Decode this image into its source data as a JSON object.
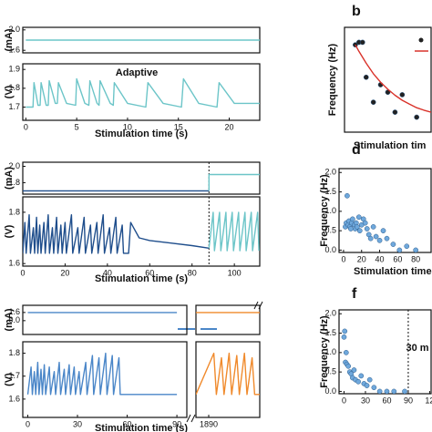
{
  "chart_data": [
    {
      "type": "line",
      "ylabel": "(mA)",
      "xlim": [
        -0.3,
        23
      ],
      "ylim": [
        1.55,
        2.05
      ],
      "xticks": [],
      "yticks": [
        {
          "value": 2,
          "label": "2.0"
        },
        1.6
      ],
      "series": [
        {
          "color": "#6cc5c8",
          "x": [
            0,
            23
          ],
          "values": [
            1.8,
            1.8
          ]
        }
      ]
    },
    {
      "type": "line",
      "ylabel": "(V)",
      "xlabel": "Stimulation time (s)",
      "annotation": "Adaptive",
      "xlim": [
        -0.3,
        23
      ],
      "ylim": [
        1.63,
        1.93
      ],
      "xticks": [
        0,
        5,
        10,
        15,
        20
      ],
      "yticks": [
        1.7,
        1.8,
        1.9
      ],
      "series": [
        {
          "color": "#6cc5c8",
          "x": [
            0,
            0.7,
            0.8,
            1.2,
            1.4,
            1.5,
            2.0,
            2.2,
            2.3,
            2.9,
            3.1,
            3.2,
            4.0,
            4.9,
            5.0,
            5.8,
            6.2,
            6.3,
            7.0,
            7.2,
            7.3,
            8.3,
            8.6,
            8.7,
            10,
            11.8,
            12,
            13.5,
            15.3,
            15.5,
            17,
            18.8,
            19,
            20.5,
            23
          ],
          "values": [
            1.7,
            1.7,
            1.83,
            1.71,
            1.71,
            1.83,
            1.71,
            1.71,
            1.84,
            1.72,
            1.72,
            1.83,
            1.72,
            1.71,
            1.85,
            1.72,
            1.71,
            1.84,
            1.72,
            1.71,
            1.84,
            1.72,
            1.71,
            1.83,
            1.72,
            1.7,
            1.83,
            1.72,
            1.7,
            1.85,
            1.72,
            1.7,
            1.83,
            1.72,
            1.72
          ]
        }
      ]
    },
    {
      "type": "line",
      "ylabel": "(mA)",
      "xlim": [
        0,
        112
      ],
      "ylim": [
        1.66,
        2.05
      ],
      "xticks": [],
      "yticks": [
        {
          "value": 2,
          "label": "2.0"
        },
        1.8
      ],
      "vlines": [
        88
      ],
      "series": [
        {
          "color": "#1f4e8c",
          "x": [
            0,
            88
          ],
          "values": [
            1.7,
            1.7
          ]
        },
        {
          "color": "#6cc5c8",
          "x": [
            88,
            88,
            112
          ],
          "values": [
            1.7,
            1.9,
            1.9
          ]
        }
      ]
    },
    {
      "type": "line",
      "ylabel": "(V)",
      "xlabel": "Stimulation time (s)",
      "xlim": [
        0,
        112
      ],
      "ylim": [
        1.59,
        1.86
      ],
      "xticks": [
        0,
        20,
        40,
        60,
        80,
        100
      ],
      "yticks": [
        1.6,
        1.8
      ],
      "vlines": [
        88
      ],
      "series": [
        {
          "color": "#1f4e8c",
          "x": [
            0,
            1,
            1.6,
            3,
            3.6,
            5,
            5.6,
            6.5,
            7.1,
            8,
            8.6,
            10,
            10.6,
            12,
            12.6,
            14,
            14.6,
            16,
            16.6,
            18,
            18.6,
            20,
            20.6,
            23,
            23.6,
            26,
            26.6,
            29,
            29.6,
            32,
            32.6,
            35,
            35.6,
            38,
            38.6,
            41,
            41.6,
            44,
            44.6,
            47,
            47.6,
            50,
            51,
            55,
            60,
            70,
            80,
            88
          ],
          "values": [
            1.64,
            1.76,
            1.64,
            1.79,
            1.64,
            1.74,
            1.64,
            1.78,
            1.64,
            1.75,
            1.64,
            1.76,
            1.64,
            1.79,
            1.64,
            1.74,
            1.64,
            1.78,
            1.64,
            1.75,
            1.64,
            1.76,
            1.64,
            1.79,
            1.64,
            1.74,
            1.64,
            1.78,
            1.64,
            1.75,
            1.64,
            1.76,
            1.64,
            1.79,
            1.64,
            1.74,
            1.64,
            1.78,
            1.64,
            1.75,
            1.64,
            1.64,
            1.76,
            1.7,
            1.69,
            1.68,
            1.67,
            1.66
          ]
        },
        {
          "color": "#6cc5c8",
          "x": [
            88,
            90,
            90.6,
            93,
            93.6,
            96,
            96.6,
            99,
            99.6,
            102,
            102.6,
            105,
            105.6,
            108,
            108.6,
            111,
            111.6
          ],
          "values": [
            1.66,
            1.8,
            1.65,
            1.8,
            1.65,
            1.8,
            1.65,
            1.8,
            1.65,
            1.8,
            1.65,
            1.8,
            1.65,
            1.8,
            1.65,
            1.8,
            1.65
          ]
        }
      ]
    },
    {
      "type": "line",
      "ylabel": "(mA)",
      "xlim": [
        -3,
        96
      ],
      "ylim": [
        -2.7,
        3.0
      ],
      "xticks": [],
      "yticks": [
        1.6,
        {
          "value": 0,
          "label": "0.0"
        }
      ],
      "series": [
        {
          "color": "#4a86c8",
          "x": [
            0,
            90
          ],
          "values": [
            1.6,
            1.6
          ]
        }
      ]
    },
    {
      "type": "line",
      "xlim": [
        1885,
        1910
      ],
      "ylim": [
        -2.7,
        3.0
      ],
      "xticks": [],
      "yticks": [],
      "series": [
        {
          "color": "#f08a2c",
          "x": [
            1885,
            1910
          ],
          "values": [
            1.6,
            1.6
          ]
        }
      ]
    },
    {
      "type": "line",
      "ylabel": "(V)",
      "xlabel": "Stimulation time (s)",
      "xlim": [
        -3,
        96
      ],
      "ylim": [
        1.52,
        1.85
      ],
      "xticks": [
        0,
        30,
        60,
        90
      ],
      "yticks": [
        1.6,
        1.7,
        1.8
      ],
      "series": [
        {
          "color": "#4a86c8",
          "x": [
            0,
            2,
            2.8,
            4,
            4.8,
            6,
            6.8,
            8,
            8.8,
            10,
            10.8,
            13,
            13.8,
            16,
            16.8,
            19,
            19.8,
            22,
            22.8,
            25,
            25.8,
            28,
            28.8,
            31,
            31.8,
            35,
            35.8,
            39,
            39.8,
            43,
            43.8,
            47,
            47.8,
            51,
            51.8,
            55,
            55.8,
            58,
            60,
            90
          ],
          "values": [
            1.62,
            1.74,
            1.62,
            1.72,
            1.62,
            1.76,
            1.62,
            1.73,
            1.62,
            1.75,
            1.62,
            1.74,
            1.62,
            1.72,
            1.62,
            1.76,
            1.62,
            1.73,
            1.62,
            1.75,
            1.62,
            1.74,
            1.62,
            1.72,
            1.62,
            1.76,
            1.62,
            1.79,
            1.62,
            1.78,
            1.62,
            1.8,
            1.62,
            1.79,
            1.62,
            1.78,
            1.62,
            1.62,
            1.62,
            1.62
          ]
        }
      ]
    },
    {
      "type": "line",
      "xlim": [
        1885,
        1910
      ],
      "ylim": [
        1.52,
        1.85
      ],
      "xticks": [
        1890
      ],
      "yticks": [],
      "series": [
        {
          "color": "#f08a2c",
          "x": [
            1885,
            1892,
            1893,
            1895,
            1896,
            1898,
            1899,
            1901,
            1902,
            1904,
            1905,
            1907,
            1908,
            1910
          ],
          "values": [
            1.62,
            1.8,
            1.62,
            1.78,
            1.62,
            1.8,
            1.62,
            1.79,
            1.62,
            1.8,
            1.62,
            1.78,
            1.62,
            1.62
          ]
        }
      ]
    },
    {
      "type": "scatter",
      "label": "b",
      "ylabel": "Frequency (Hz)",
      "xlabel": "Stimulation tim",
      "xlim": [
        0,
        12
      ],
      "ylim": [
        0,
        2.1
      ],
      "xticks": [],
      "yticks": [],
      "series": [
        {
          "color": "#222222",
          "x": [
            1.5,
            2,
            2.5,
            3,
            4,
            5,
            6,
            7,
            8,
            10
          ],
          "values": [
            1.75,
            1.8,
            1.8,
            1.1,
            0.6,
            0.95,
            0.8,
            0.4,
            0.75,
            0.3
          ]
        },
        {
          "type": "line",
          "color": "#d9322a",
          "x": [
            1.5,
            2,
            3,
            4,
            5,
            6,
            7,
            8,
            9,
            10,
            11,
            12
          ],
          "values": [
            1.75,
            1.62,
            1.38,
            1.17,
            1.0,
            0.86,
            0.74,
            0.64,
            0.56,
            0.49,
            0.44,
            0.4
          ]
        }
      ]
    },
    {
      "type": "scatter",
      "label": "d",
      "ylabel": "Frequency (Hz)",
      "xlabel": "Stimulation time",
      "xlim": [
        -5,
        97
      ],
      "ylim": [
        -0.06,
        2.1
      ],
      "xticks": [
        0,
        20,
        40,
        60,
        80
      ],
      "yticks": [
        {
          "value": 0,
          "label": "0.0"
        },
        0.5,
        {
          "value": 1,
          "label": "1.0"
        },
        1.5,
        {
          "value": 2,
          "label": "2.0"
        }
      ],
      "series": [
        {
          "color": "#6fa8dc",
          "x": [
            2,
            3,
            4,
            5,
            6,
            7,
            8,
            9,
            10,
            12,
            13,
            14,
            15,
            17,
            18,
            20,
            22,
            24,
            26,
            28,
            30,
            33,
            36,
            40,
            44,
            48,
            55,
            62,
            70,
            80
          ],
          "values": [
            0.6,
            0.7,
            1.4,
            0.65,
            0.75,
            0.6,
            0.55,
            0.7,
            0.8,
            0.65,
            0.55,
            0.7,
            0.6,
            0.85,
            0.5,
            0.65,
            0.8,
            0.7,
            0.55,
            0.4,
            0.3,
            0.6,
            0.35,
            0.25,
            0.5,
            0.3,
            0.15,
            0.0,
            0.1,
            0.0
          ]
        }
      ]
    },
    {
      "type": "scatter",
      "label": "f",
      "ylabel": "Frequency (Hz)",
      "annotation": "30 m",
      "xlim": [
        -7,
        122
      ],
      "ylim": [
        -0.06,
        2.1
      ],
      "vlines": [
        90
      ],
      "xticks": [
        0,
        30,
        60,
        90,
        {
          "value": 120,
          "label": "12"
        }
      ],
      "yticks": [
        {
          "value": 0,
          "label": "0.0"
        },
        0.5,
        {
          "value": 1,
          "label": "1.0"
        },
        1.5,
        {
          "value": 2,
          "label": "2.0"
        }
      ],
      "series": [
        {
          "color": "#6fa8dc",
          "x": [
            0,
            1,
            2,
            3,
            4,
            6,
            8,
            10,
            12,
            14,
            16,
            20,
            24,
            28,
            32,
            36,
            42,
            50,
            60,
            70,
            85
          ],
          "values": [
            1.4,
            1.55,
            0.75,
            1.0,
            0.7,
            0.65,
            0.5,
            0.45,
            0.35,
            0.55,
            0.3,
            0.25,
            0.4,
            0.2,
            0.15,
            0.3,
            0.1,
            0.0,
            0.0,
            0.0,
            0.0
          ]
        }
      ]
    }
  ]
}
